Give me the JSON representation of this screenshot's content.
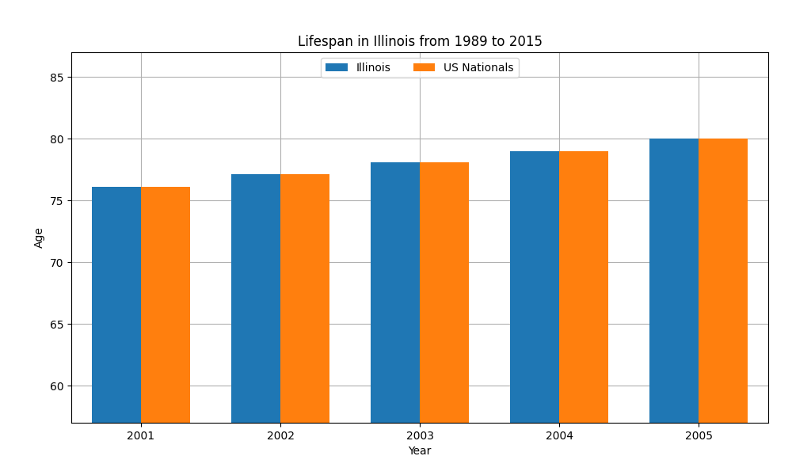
{
  "chart_data": {
    "type": "bar",
    "title": "Lifespan in Illinois from 1989 to 2015",
    "x_label": "Year",
    "y_label": "Age",
    "categories": [
      "2001",
      "2002",
      "2003",
      "2004",
      "2005"
    ],
    "series": [
      {
        "name": "Illinois",
        "values": [
          76.1,
          77.1,
          78.1,
          79.0,
          80.0
        ]
      },
      {
        "name": "US Nationals",
        "values": [
          76.1,
          77.1,
          78.1,
          79.0,
          80.0
        ]
      }
    ],
    "ylim": [
      57,
      87
    ],
    "yticks": [
      60,
      65,
      70,
      75,
      80,
      85
    ],
    "grid": true,
    "legend": "upper center"
  }
}
